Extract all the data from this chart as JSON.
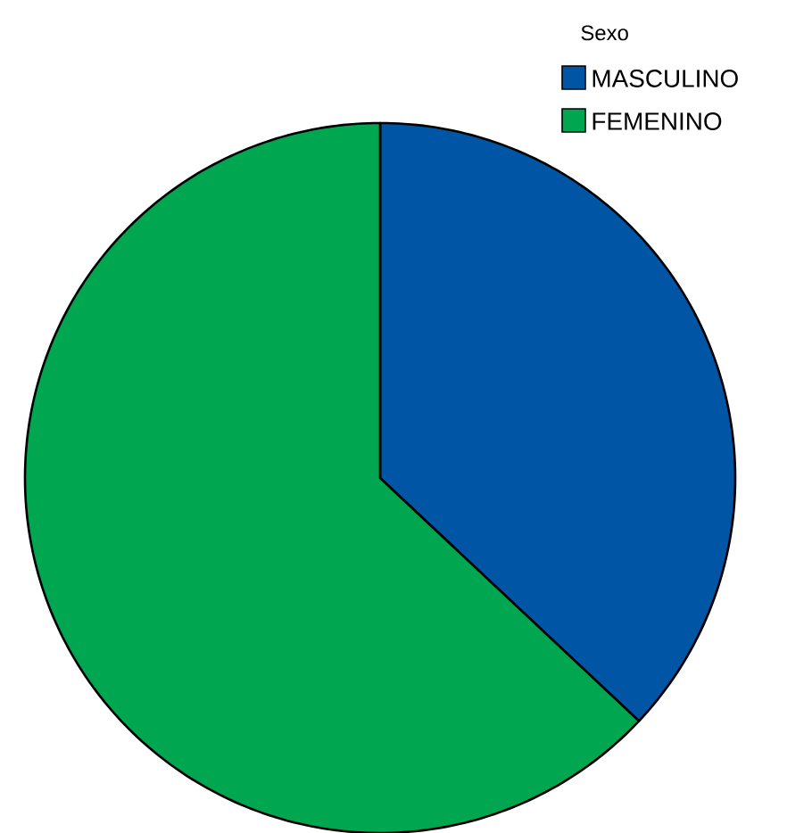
{
  "chart_data": {
    "type": "pie",
    "legend_title": "Sexo",
    "legend": "top right",
    "categories": [
      "MASCULINO",
      "FEMENINO"
    ],
    "values": [
      37,
      63
    ],
    "colors": [
      "#0055a4",
      "#00a650"
    ]
  }
}
